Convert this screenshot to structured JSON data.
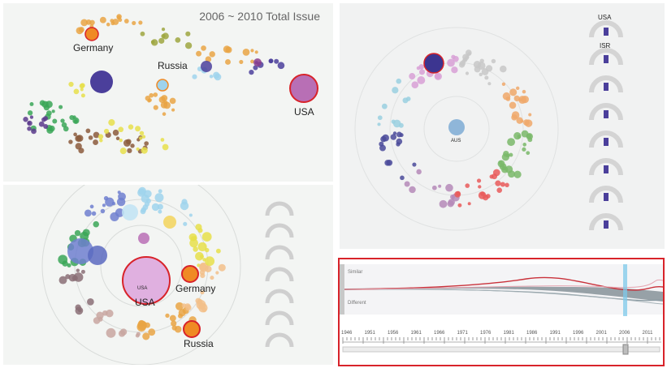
{
  "top_left": {
    "title": "2006 ~ 2010  Total Issue",
    "labels": {
      "germany": "Germany",
      "russia": "Russia",
      "usa": "USA"
    }
  },
  "bottom_left": {
    "labels": {
      "usa": "USA",
      "germany": "Germany",
      "russia": "Russia"
    }
  },
  "top_right": {
    "center_label": "AUS",
    "gauge_header_country": "USA",
    "gauge_second_country": "ISR"
  },
  "bottom_right": {
    "series_label_top": "Similar",
    "series_label_bottom": "Different",
    "years": [
      "1946",
      "1951",
      "1956",
      "1961",
      "1966",
      "1971",
      "1976",
      "1981",
      "1986",
      "1991",
      "1996",
      "2001",
      "2006",
      "2011"
    ]
  },
  "colors": {
    "highlight_border": "#d8232a",
    "usa": "#b86fb5",
    "germany": "#f08a24",
    "russia_top": "#9fd3ec",
    "purple_dark": "#4b3f9b"
  }
}
